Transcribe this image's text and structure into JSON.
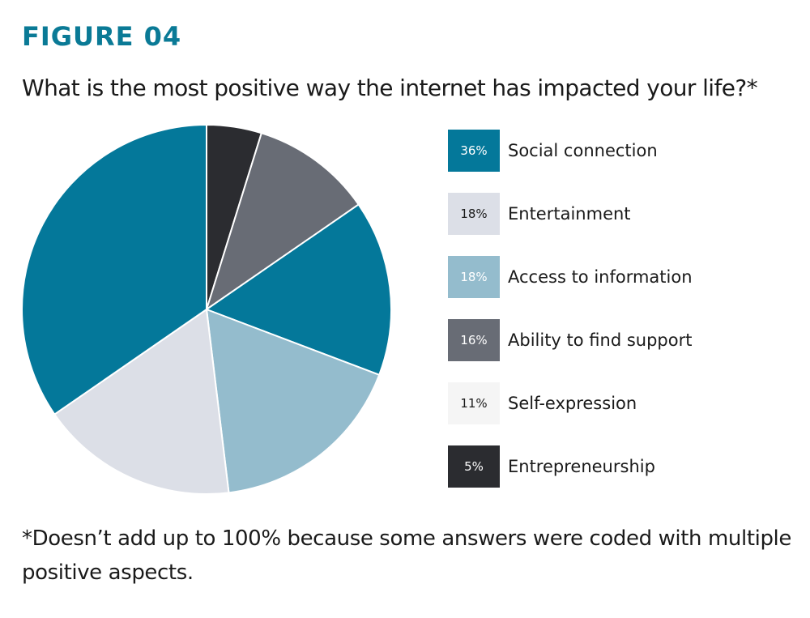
{
  "figure_label": "FIGURE 04",
  "chart_data": {
    "type": "pie",
    "title": "What is the most positive way the internet has impacted your life?*",
    "series": [
      {
        "label": "Social connection",
        "value": 36,
        "percent_label": "36%",
        "color": "#04789a",
        "text_color": "#ffffff"
      },
      {
        "label": "Entertainment",
        "value": 18,
        "percent_label": "18%",
        "color": "#dcdfe7",
        "text_color": "#1a1a1a"
      },
      {
        "label": "Access to information",
        "value": 18,
        "percent_label": "18%",
        "color": "#94bccd",
        "text_color": "#ffffff"
      },
      {
        "label": "Ability to find support",
        "value": 16,
        "percent_label": "16%",
        "color": "#686c75",
        "text_color": "#ffffff"
      },
      {
        "label": "Self-expression",
        "value": 11,
        "percent_label": "11%",
        "color": "#f5f5f5",
        "text_color": "#1a1a1a"
      },
      {
        "label": "Entrepreneurship",
        "value": 5,
        "percent_label": "5%",
        "color": "#2b2c30",
        "text_color": "#ffffff"
      }
    ],
    "legend_position": "right"
  },
  "footnote": "*Doesn’t add up to 100% because some answers were coded with multiple positive aspects."
}
